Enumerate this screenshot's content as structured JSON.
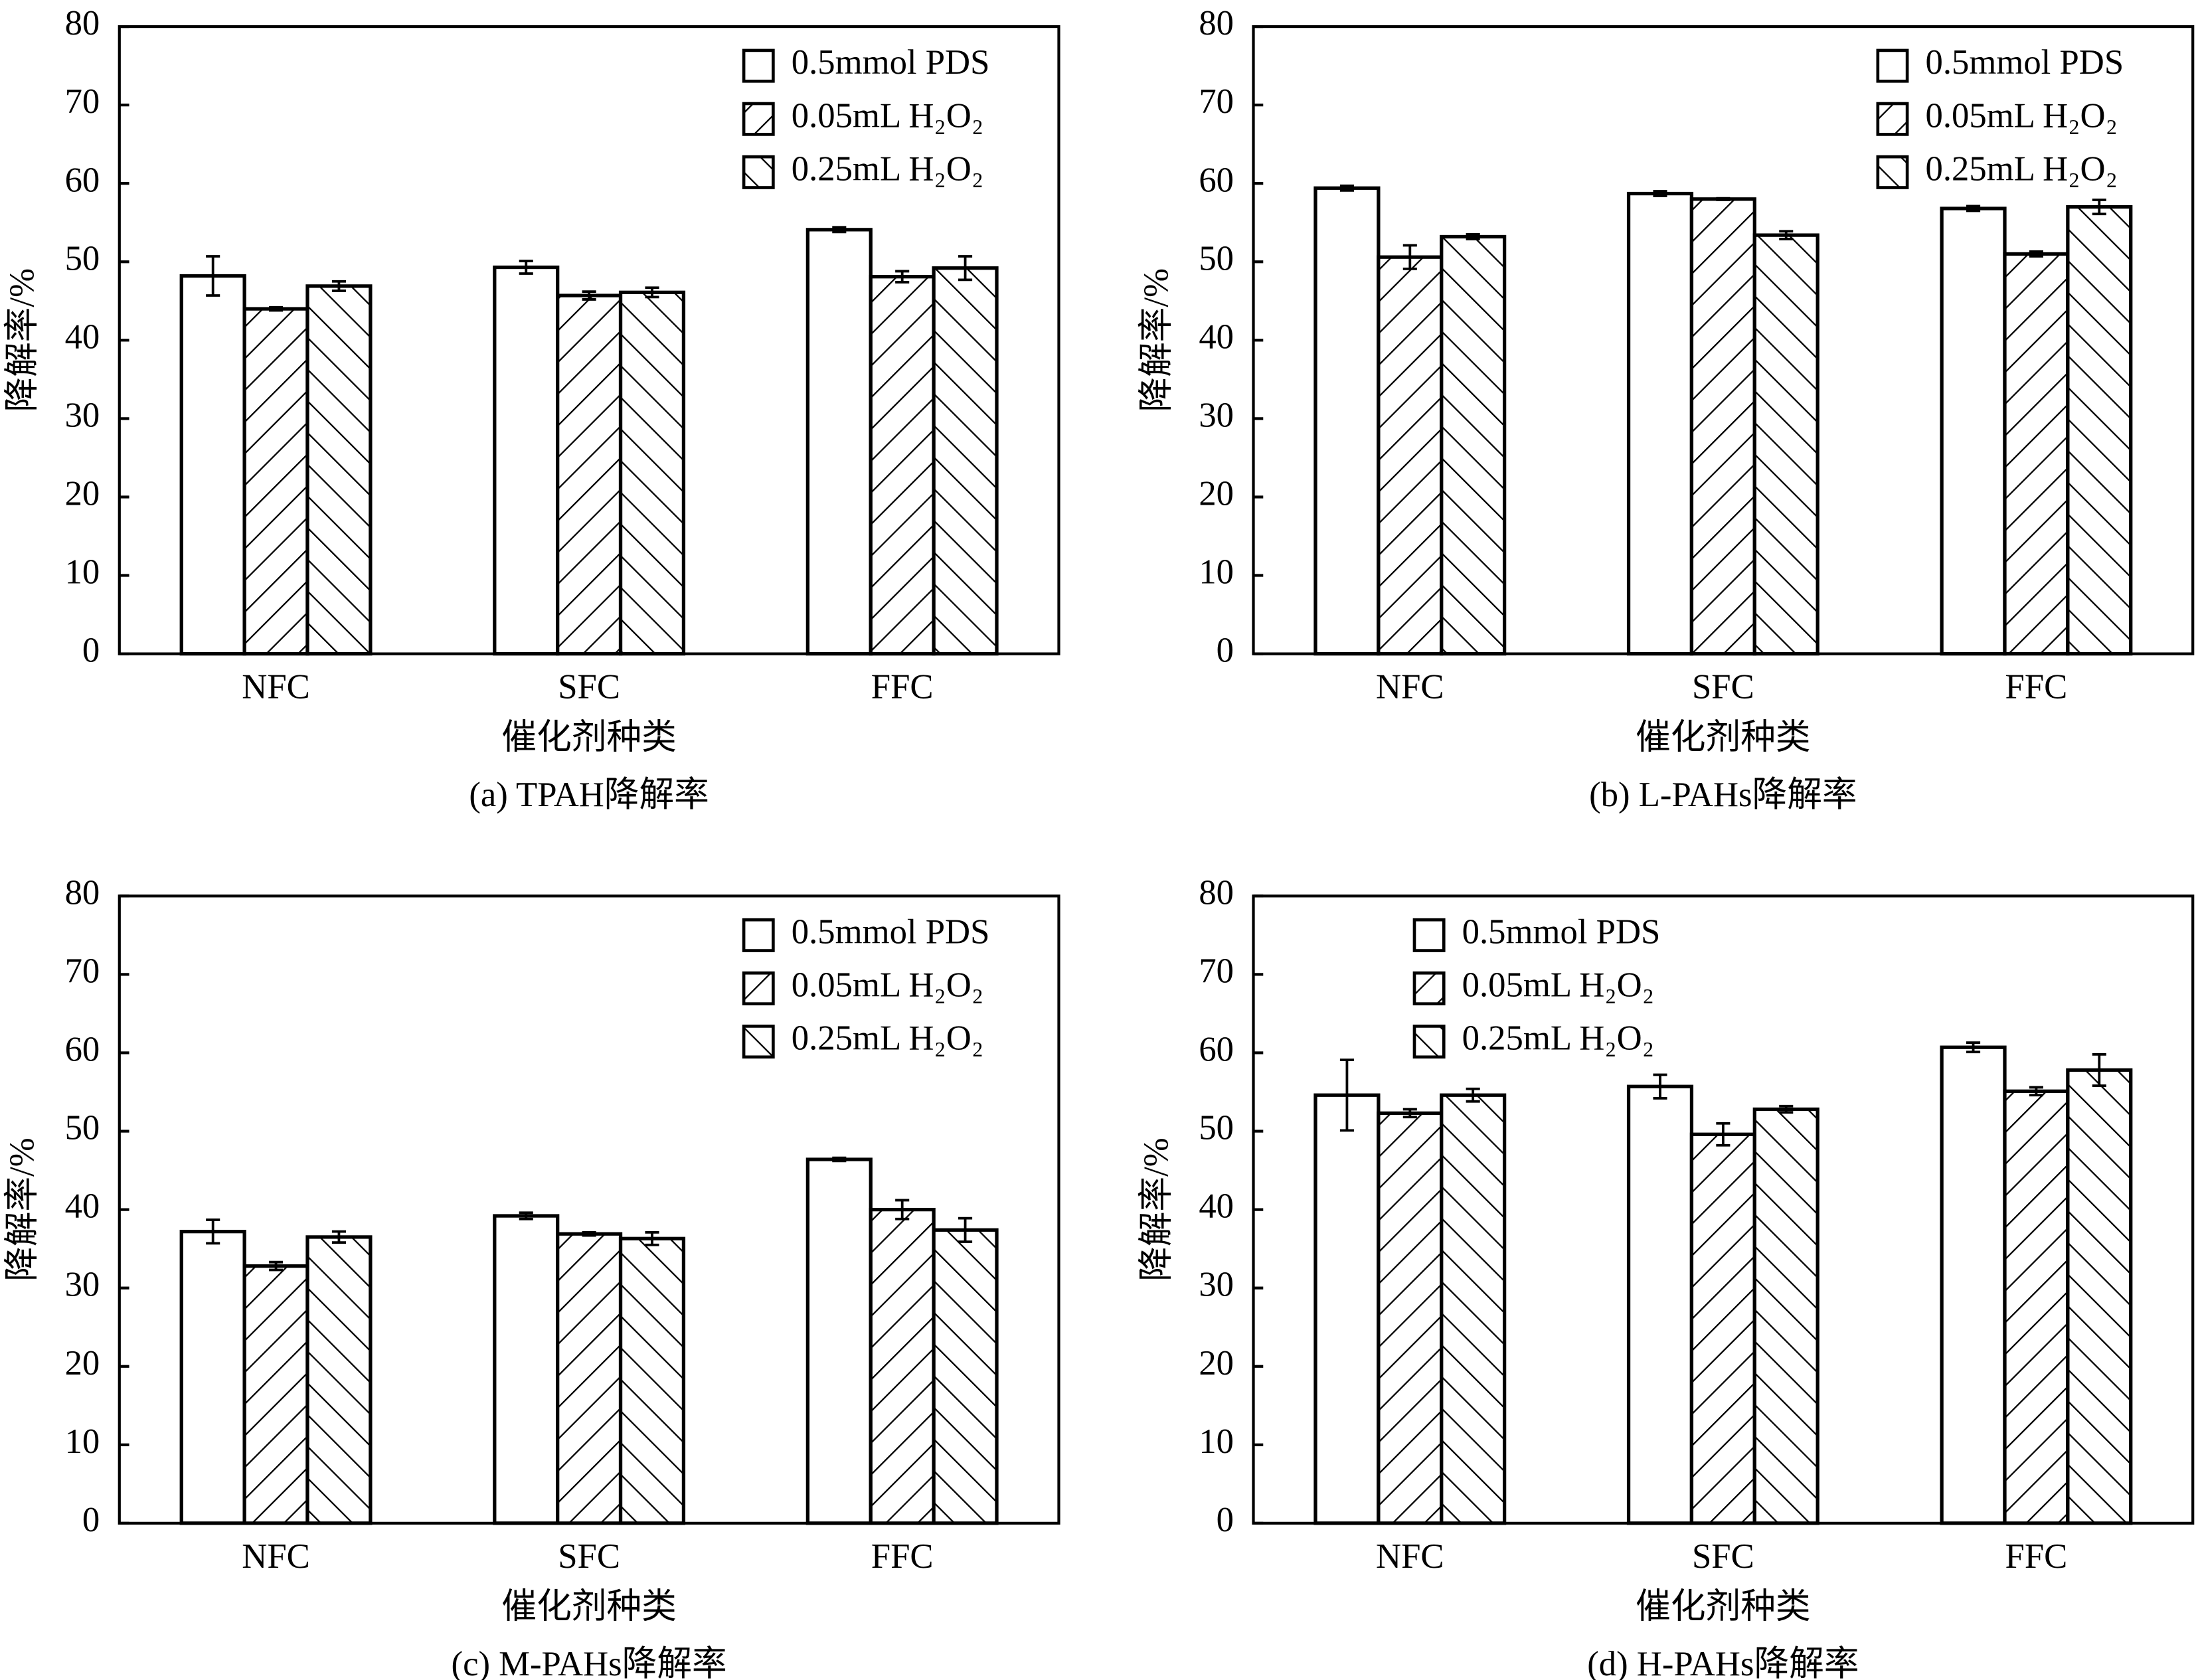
{
  "chart_data": [
    {
      "type": "bar",
      "caption": "(a) TPAH降解率",
      "ylabel": "降解率/%",
      "xlabel": "催化剂种类",
      "categories": [
        "NFC",
        "SFC",
        "FFC"
      ],
      "ylim": [
        0,
        80
      ],
      "yticks": [
        0,
        10,
        20,
        30,
        40,
        50,
        60,
        70,
        80
      ],
      "legend": "upper right",
      "series": [
        {
          "name": "0.5mmol PDS",
          "color": "#ffffff",
          "pattern": "none",
          "values": [
            48.2,
            49.3,
            54.1
          ],
          "errors": [
            2.5,
            0.8,
            0.3
          ]
        },
        {
          "name": "0.05mL H₂O₂",
          "color": "#ffffff",
          "pattern": "backslash",
          "values": [
            44.0,
            45.7,
            48.1
          ],
          "errors": [
            0.2,
            0.5,
            0.7
          ]
        },
        {
          "name": "0.25mL H₂O₂",
          "color": "#ffffff",
          "pattern": "slash",
          "values": [
            46.9,
            46.1,
            49.2
          ],
          "errors": [
            0.6,
            0.6,
            1.5
          ]
        }
      ]
    },
    {
      "type": "bar",
      "caption": "(b) L-PAHs降解率",
      "ylabel": "降解率/%",
      "xlabel": "催化剂种类",
      "categories": [
        "NFC",
        "SFC",
        "FFC"
      ],
      "ylim": [
        0,
        80
      ],
      "yticks": [
        0,
        10,
        20,
        30,
        40,
        50,
        60,
        70,
        80
      ],
      "legend": "upper right",
      "series": [
        {
          "name": "0.5mmol PDS",
          "color": "#ffffff",
          "pattern": "none",
          "values": [
            59.4,
            58.7,
            56.8
          ],
          "errors": [
            0.3,
            0.3,
            0.3
          ]
        },
        {
          "name": "0.05mL H₂O₂",
          "color": "#ffffff",
          "pattern": "backslash",
          "values": [
            50.6,
            58.0,
            51.0
          ],
          "errors": [
            1.5,
            0.1,
            0.3
          ]
        },
        {
          "name": "0.25mL H₂O₂",
          "color": "#ffffff",
          "pattern": "slash",
          "values": [
            53.2,
            53.4,
            57.0
          ],
          "errors": [
            0.3,
            0.5,
            0.9
          ]
        }
      ]
    },
    {
      "type": "bar",
      "caption": "(c) M-PAHs降解率",
      "ylabel": "降解率/%",
      "xlabel": "催化剂种类",
      "categories": [
        "NFC",
        "SFC",
        "FFC"
      ],
      "ylim": [
        0,
        80
      ],
      "yticks": [
        0,
        10,
        20,
        30,
        40,
        50,
        60,
        70,
        80
      ],
      "legend": "upper right",
      "series": [
        {
          "name": "0.5mmol PDS",
          "color": "#ffffff",
          "pattern": "none",
          "values": [
            37.2,
            39.2,
            46.4
          ],
          "errors": [
            1.5,
            0.4,
            0.2
          ]
        },
        {
          "name": "0.05mL H₂O₂",
          "color": "#ffffff",
          "pattern": "backslash",
          "values": [
            32.8,
            36.9,
            40.0
          ],
          "errors": [
            0.5,
            0.2,
            1.2
          ]
        },
        {
          "name": "0.25mL H₂O₂",
          "color": "#ffffff",
          "pattern": "slash",
          "values": [
            36.5,
            36.3,
            37.4
          ],
          "errors": [
            0.7,
            0.8,
            1.5
          ]
        }
      ]
    },
    {
      "type": "bar",
      "caption": "(d) H-PAHs降解率",
      "ylabel": "降解率/%",
      "xlabel": "催化剂种类",
      "categories": [
        "NFC",
        "SFC",
        "FFC"
      ],
      "ylim": [
        0,
        80
      ],
      "yticks": [
        0,
        10,
        20,
        30,
        40,
        50,
        60,
        70,
        80
      ],
      "legend": "upper left",
      "series": [
        {
          "name": "0.5mmol PDS",
          "color": "#ffffff",
          "pattern": "none",
          "values": [
            54.6,
            55.7,
            60.7
          ],
          "errors": [
            4.5,
            1.5,
            0.6
          ]
        },
        {
          "name": "0.05mL H₂O₂",
          "color": "#ffffff",
          "pattern": "backslash",
          "values": [
            52.3,
            49.6,
            55.1
          ],
          "errors": [
            0.5,
            1.4,
            0.5
          ]
        },
        {
          "name": "0.25mL H₂O₂",
          "color": "#ffffff",
          "pattern": "slash",
          "values": [
            54.6,
            52.8,
            57.8
          ],
          "errors": [
            0.8,
            0.4,
            2.0
          ]
        }
      ]
    }
  ]
}
